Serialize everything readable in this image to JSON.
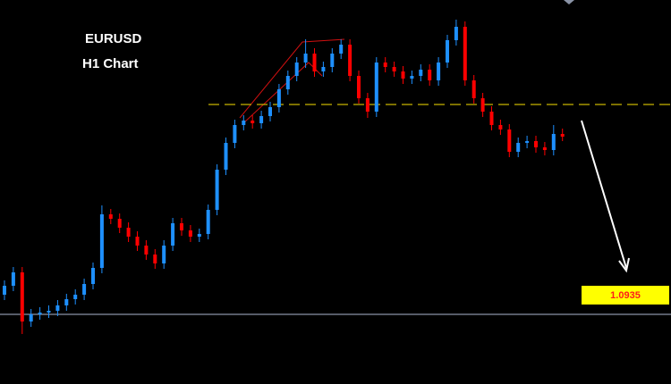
{
  "chart_data": {
    "type": "candlestick",
    "title": "EURUSD",
    "subtitle": "H1 Chart",
    "ylim": [
      1.0885,
      1.11
    ],
    "up_color": "#1e90ff",
    "down_color": "#ff0000",
    "open": [
      1.0935,
      1.094,
      1.09475,
      1.092,
      1.0924,
      1.0925,
      1.0926,
      1.0929,
      1.09325,
      1.0935,
      1.0941,
      1.095,
      1.098,
      1.09775,
      1.09725,
      1.09675,
      1.09625,
      1.09575,
      1.09525,
      1.09625,
      1.0975,
      1.0971,
      1.09675,
      1.0969,
      1.09825,
      1.1005,
      1.102,
      1.103,
      1.10325,
      1.1031,
      1.1035,
      1.104,
      1.105,
      1.10575,
      1.1065,
      1.107,
      1.106,
      1.10625,
      1.107,
      1.1075,
      1.10575,
      1.1045,
      1.10375,
      1.1065,
      1.10625,
      1.106,
      1.1056,
      1.10575,
      1.1061,
      1.1055,
      1.1065,
      1.10775,
      1.1085,
      1.1055,
      1.1045,
      1.10375,
      1.103,
      1.10275,
      1.1015,
      1.102,
      1.1021,
      1.10175,
      1.1016,
      1.1025
    ],
    "high": [
      1.0943,
      1.09505,
      1.09505,
      1.0927,
      1.0928,
      1.0929,
      1.0932,
      1.09355,
      1.0938,
      1.0944,
      1.0953,
      1.0985,
      1.0983,
      1.09805,
      1.09755,
      1.09705,
      1.09655,
      1.09605,
      1.09655,
      1.0978,
      1.0978,
      1.0974,
      1.0972,
      1.09855,
      1.1008,
      1.1023,
      1.1033,
      1.10355,
      1.10355,
      1.1038,
      1.1043,
      1.1053,
      1.10605,
      1.1068,
      1.1078,
      1.1073,
      1.10655,
      1.1073,
      1.1078,
      1.1078,
      1.10605,
      1.1048,
      1.1068,
      1.1068,
      1.10655,
      1.1063,
      1.10605,
      1.1064,
      1.1064,
      1.1068,
      1.10805,
      1.1089,
      1.1088,
      1.1058,
      1.1048,
      1.10405,
      1.1033,
      1.10305,
      1.1023,
      1.1024,
      1.1024,
      1.10205,
      1.103,
      1.1028
    ],
    "low": [
      1.0932,
      1.0937,
      1.0913,
      1.0917,
      1.0921,
      1.0922,
      1.0923,
      1.0926,
      1.09295,
      1.0932,
      1.0938,
      1.0947,
      1.09745,
      1.09695,
      1.09645,
      1.09595,
      1.09545,
      1.09495,
      1.09495,
      1.09595,
      1.0968,
      1.09645,
      1.09645,
      1.0966,
      1.09795,
      1.1002,
      1.1017,
      1.1027,
      1.1028,
      1.1028,
      1.1032,
      1.1037,
      1.1047,
      1.10545,
      1.1062,
      1.1057,
      1.1057,
      1.10595,
      1.1067,
      1.10545,
      1.1042,
      1.1034,
      1.10345,
      1.10595,
      1.1057,
      1.1053,
      1.1053,
      1.10545,
      1.1052,
      1.1052,
      1.1062,
      1.10745,
      1.1052,
      1.1042,
      1.10345,
      1.1027,
      1.10245,
      1.1012,
      1.1012,
      1.1017,
      1.10145,
      1.1013,
      1.1013,
      1.1021
    ],
    "close": [
      1.094,
      1.09475,
      1.092,
      1.0924,
      1.0925,
      1.0926,
      1.0929,
      1.09325,
      1.0935,
      1.0941,
      1.095,
      1.098,
      1.09775,
      1.09725,
      1.09675,
      1.09625,
      1.09575,
      1.09525,
      1.09625,
      1.0975,
      1.0971,
      1.09675,
      1.0969,
      1.09825,
      1.1005,
      1.102,
      1.103,
      1.10325,
      1.1031,
      1.1035,
      1.104,
      1.105,
      1.10575,
      1.1065,
      1.107,
      1.106,
      1.10625,
      1.107,
      1.1075,
      1.10575,
      1.1045,
      1.10375,
      1.1065,
      1.10625,
      1.106,
      1.1056,
      1.10575,
      1.1061,
      1.1055,
      1.1065,
      1.10775,
      1.1085,
      1.1055,
      1.1045,
      1.10375,
      1.103,
      1.10275,
      1.1015,
      1.102,
      1.1021,
      1.10175,
      1.1016,
      1.1025,
      1.10235
    ],
    "levels": [
      {
        "value": 1.10415,
        "color": "#c8b400",
        "style": "dashed"
      },
      {
        "value": 1.0924,
        "color": "#8a93a6",
        "style": "solid"
      }
    ],
    "price_label": {
      "value": 1.0935,
      "color": "#ff1a1a",
      "background": "#ffff00"
    }
  }
}
